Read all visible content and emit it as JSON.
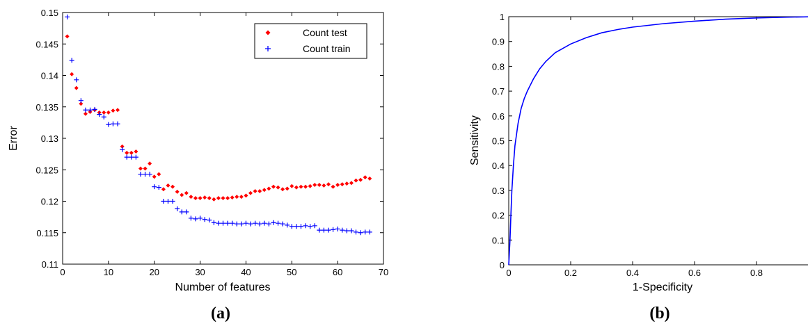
{
  "chart_data": [
    {
      "type": "scatter",
      "panel_label": "(a)",
      "xlabel": "Number of features",
      "ylabel": "Error",
      "xlim": [
        0,
        70
      ],
      "ylim": [
        0.11,
        0.15
      ],
      "xticks": [
        0,
        10,
        20,
        30,
        40,
        50,
        60,
        70
      ],
      "yticks": [
        0.11,
        0.115,
        0.12,
        0.125,
        0.13,
        0.135,
        0.14,
        0.145,
        0.15
      ],
      "ytick_labels": [
        "0.11",
        "0.115",
        "0.12",
        "0.125",
        "0.13",
        "0.135",
        "0.14",
        "0.145",
        "0.15"
      ],
      "legend": {
        "position": "top-right"
      },
      "x": [
        1,
        2,
        3,
        4,
        5,
        6,
        7,
        8,
        9,
        10,
        11,
        12,
        13,
        14,
        15,
        16,
        17,
        18,
        19,
        20,
        21,
        22,
        23,
        24,
        25,
        26,
        27,
        28,
        29,
        30,
        31,
        32,
        33,
        34,
        35,
        36,
        37,
        38,
        39,
        40,
        41,
        42,
        43,
        44,
        45,
        46,
        47,
        48,
        49,
        50,
        51,
        52,
        53,
        54,
        55,
        56,
        57,
        58,
        59,
        60,
        61,
        62,
        63,
        64,
        65,
        66,
        67
      ],
      "series": [
        {
          "name": "Count test",
          "color": "#ff0000",
          "marker": "diamond",
          "values": [
            0.1462,
            0.1402,
            0.138,
            0.1355,
            0.1339,
            0.1342,
            0.1345,
            0.1341,
            0.1341,
            0.1341,
            0.1344,
            0.1345,
            0.1287,
            0.1277,
            0.1277,
            0.1279,
            0.1252,
            0.1252,
            0.126,
            0.1239,
            0.1243,
            0.1219,
            0.1225,
            0.1223,
            0.1215,
            0.121,
            0.1213,
            0.1207,
            0.1205,
            0.1205,
            0.1206,
            0.1205,
            0.1203,
            0.1205,
            0.1205,
            0.1205,
            0.1206,
            0.1207,
            0.1207,
            0.1209,
            0.1213,
            0.1216,
            0.1216,
            0.1218,
            0.122,
            0.1223,
            0.1222,
            0.1219,
            0.122,
            0.1224,
            0.1222,
            0.1223,
            0.1223,
            0.1224,
            0.1226,
            0.1226,
            0.1225,
            0.1227,
            0.1223,
            0.1226,
            0.1227,
            0.1228,
            0.1229,
            0.1233,
            0.1234,
            0.1238,
            0.1236
          ]
        },
        {
          "name": "Count train",
          "color": "#0000ff",
          "marker": "plus",
          "values": [
            0.1493,
            0.1424,
            0.1393,
            0.136,
            0.1345,
            0.1345,
            0.1346,
            0.1338,
            0.1334,
            0.1322,
            0.1323,
            0.1323,
            0.1282,
            0.127,
            0.127,
            0.127,
            0.1243,
            0.1243,
            0.1243,
            0.1223,
            0.1222,
            0.12,
            0.12,
            0.12,
            0.1188,
            0.1183,
            0.1183,
            0.1173,
            0.1172,
            0.1173,
            0.1171,
            0.117,
            0.1166,
            0.1165,
            0.1165,
            0.1165,
            0.1165,
            0.1164,
            0.1164,
            0.1165,
            0.1164,
            0.1165,
            0.1164,
            0.1165,
            0.1164,
            0.1166,
            0.1165,
            0.1164,
            0.1162,
            0.116,
            0.116,
            0.116,
            0.1161,
            0.116,
            0.1161,
            0.1154,
            0.1154,
            0.1154,
            0.1155,
            0.1156,
            0.1154,
            0.1153,
            0.1153,
            0.1151,
            0.115,
            0.1151,
            0.1151
          ]
        }
      ]
    },
    {
      "type": "line",
      "panel_label": "(b)",
      "xlabel": "1-Specificity",
      "ylabel": "Sensitivity",
      "xlim": [
        0,
        1
      ],
      "ylim": [
        0,
        1
      ],
      "xticks": [
        0,
        0.2,
        0.4,
        0.6,
        0.8
      ],
      "xtick_labels": [
        "0",
        "0.2",
        "0.4",
        "0.6",
        "0.8"
      ],
      "yticks": [
        0,
        0.1,
        0.2,
        0.3,
        0.4,
        0.5,
        0.6,
        0.7,
        0.8,
        0.9,
        1
      ],
      "ytick_labels": [
        "0",
        "0.1",
        "0.2",
        "0.3",
        "0.4",
        "0.5",
        "0.6",
        "0.7",
        "0.8",
        "0.9",
        "1"
      ],
      "series": [
        {
          "color": "#0000ff",
          "x": [
            0,
            0.002,
            0.004,
            0.007,
            0.01,
            0.015,
            0.02,
            0.03,
            0.04,
            0.05,
            0.06,
            0.08,
            0.1,
            0.12,
            0.15,
            0.2,
            0.25,
            0.3,
            0.35,
            0.4,
            0.5,
            0.6,
            0.7,
            0.8,
            0.9,
            1.0
          ],
          "values": [
            0,
            0.05,
            0.1,
            0.2,
            0.3,
            0.4,
            0.48,
            0.57,
            0.63,
            0.67,
            0.7,
            0.75,
            0.79,
            0.82,
            0.855,
            0.89,
            0.915,
            0.935,
            0.948,
            0.958,
            0.972,
            0.982,
            0.99,
            0.995,
            0.998,
            1.0
          ]
        }
      ]
    }
  ]
}
